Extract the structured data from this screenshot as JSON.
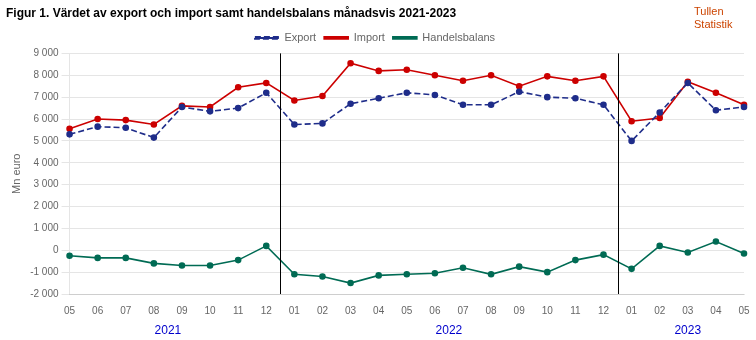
{
  "chart_data": {
    "type": "line",
    "title": "Figur 1. Värdet av export och import samt handelsbalans månadsvis 2021-2023",
    "ylabel": "Mn euro",
    "categories": [
      "05",
      "06",
      "07",
      "08",
      "09",
      "10",
      "11",
      "12",
      "01",
      "02",
      "03",
      "04",
      "05",
      "06",
      "07",
      "08",
      "09",
      "10",
      "11",
      "12",
      "01",
      "02",
      "03",
      "04",
      "05"
    ],
    "series": [
      {
        "name": "Export",
        "color": "#1F2D8A",
        "line_style": "dashed",
        "marker": "circle",
        "values": [
          5300,
          5650,
          5600,
          5150,
          6550,
          6350,
          6500,
          7200,
          5750,
          5800,
          6700,
          6950,
          7200,
          7100,
          6650,
          6650,
          7250,
          7000,
          6950,
          6650,
          5000,
          6300,
          7650,
          6400,
          6550
        ]
      },
      {
        "name": "Import",
        "color": "#CC0000",
        "line_style": "solid",
        "marker": "circle",
        "values": [
          5550,
          6000,
          5950,
          5750,
          6600,
          6550,
          7450,
          7650,
          6850,
          7050,
          8550,
          8200,
          8250,
          8000,
          7750,
          8000,
          7500,
          7950,
          7750,
          7950,
          5900,
          6050,
          7700,
          7200,
          6650
        ]
      },
      {
        "name": "Handelsbalans",
        "color": "#006B54",
        "line_style": "solid",
        "marker": "circle",
        "values": [
          -250,
          -350,
          -350,
          -600,
          -700,
          -700,
          -450,
          200,
          -1100,
          -1200,
          -1500,
          -1150,
          -1100,
          -1050,
          -800,
          -1100,
          -750,
          -1000,
          -450,
          -200,
          -850,
          200,
          -100,
          400,
          -150
        ]
      }
    ],
    "ylim": [
      -2000,
      9000
    ],
    "yticks": [
      {
        "value": -2000,
        "label": "-2 000"
      },
      {
        "value": -1000,
        "label": "-1 000"
      },
      0,
      {
        "value": 1000,
        "label": "1 000"
      },
      {
        "value": 2000,
        "label": "2 000"
      },
      {
        "value": 3000,
        "label": "3 000"
      },
      {
        "value": 4000,
        "label": "4 000"
      },
      {
        "value": 5000,
        "label": "5 000"
      },
      {
        "value": 6000,
        "label": "6 000"
      },
      {
        "value": 7000,
        "label": "7 000"
      },
      {
        "value": 8000,
        "label": "8 000"
      },
      {
        "value": 9000,
        "label": "9 000"
      }
    ],
    "grid": true,
    "legend": "top",
    "annotations": [
      {
        "text": "2021",
        "x": 3.5,
        "color": "#0000CC"
      },
      {
        "text": "2022",
        "x": 13.5,
        "color": "#0000CC"
      },
      {
        "text": "2023",
        "x": 22.0,
        "color": "#0000CC"
      },
      {
        "text": "Tullen",
        "color": "#CC4400"
      },
      {
        "text": "Statistik",
        "color": "#CC4400"
      },
      {
        "type": "line",
        "x": 7.5,
        "color": "#000000"
      },
      {
        "type": "line",
        "x": 19.5,
        "color": "#000000"
      }
    ]
  }
}
